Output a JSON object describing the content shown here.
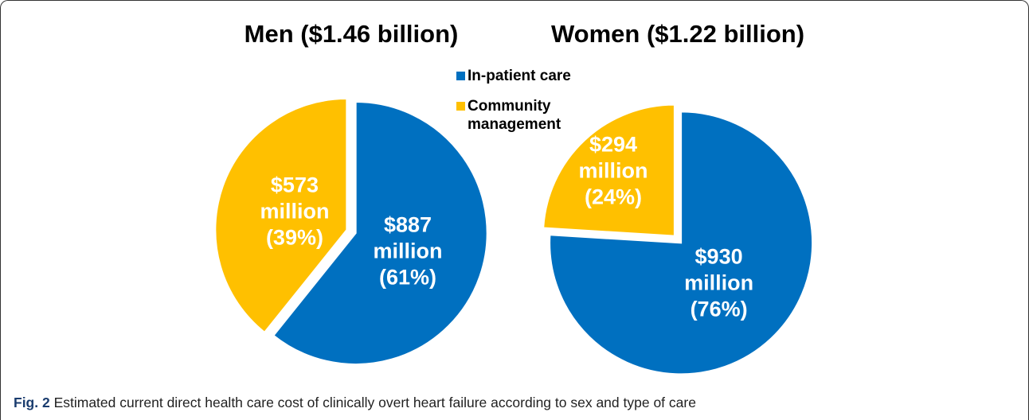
{
  "chart_data": [
    {
      "type": "pie",
      "title": "Men ($1.46 billion)",
      "values": [
        887,
        573
      ],
      "value_labels": [
        "$887 million (61%)",
        "$573 million (39%)"
      ]
    },
    {
      "type": "pie",
      "title": "Women ($1.22 billion)",
      "values": [
        930,
        294
      ],
      "value_labels": [
        "$930 million (76%)",
        "$294 million (24%)"
      ]
    }
  ],
  "legend": {
    "names": [
      "In-patient care",
      "Community management"
    ],
    "colors": [
      "#0070c0",
      "#ffc000"
    ]
  },
  "caption": {
    "label": "Fig. 2",
    "text": "Estimated current direct health care cost of clinically overt heart failure according to sex and type of care"
  }
}
